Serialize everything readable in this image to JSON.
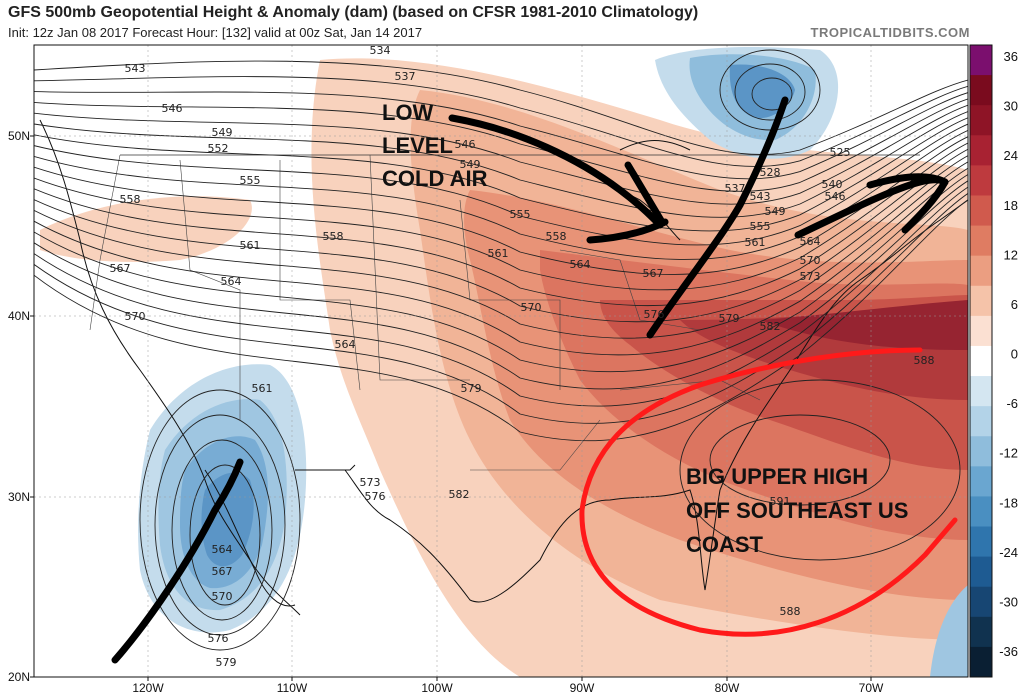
{
  "header": {
    "title": "GFS 500mb Geopotential Height & Anomaly (dam) (based on CFSR 1981-2010 Climatology)",
    "subtitle": "Init: 12z Jan 08 2017   Forecast Hour: [132]   valid at 00z Sat, Jan 14 2017",
    "brand": "TROPICALTIDBITS.COM"
  },
  "axes": {
    "lat_labels": [
      "50N",
      "40N",
      "30N",
      "20N"
    ],
    "lon_labels": [
      "120W",
      "110W",
      "100W",
      "90W",
      "80W",
      "70W"
    ]
  },
  "colorbar": {
    "labels": [
      "36",
      "30",
      "24",
      "18",
      "12",
      "6",
      "0",
      "-6",
      "-12",
      "-18",
      "-24",
      "-30",
      "-36"
    ],
    "colors": [
      "#7b0f6e",
      "#7a0b1e",
      "#8e1426",
      "#a82232",
      "#be3a3e",
      "#d05a4d",
      "#df7c62",
      "#eb9e81",
      "#f5c3a9",
      "#fbe0d2",
      "#ffffff",
      "#d4e6f1",
      "#b3d3e8",
      "#8fbddc",
      "#6aa6d0",
      "#4a8fc1",
      "#2f75ad",
      "#1e5b92",
      "#174673",
      "#10324f",
      "#0a1f33"
    ]
  },
  "contours": {
    "labels": [
      "534",
      "537",
      "543",
      "546",
      "549",
      "552",
      "555",
      "558",
      "561",
      "564",
      "567",
      "570",
      "573",
      "576",
      "579",
      "582",
      "588",
      "591",
      "525",
      "540",
      "528"
    ]
  },
  "annotations": {
    "low_level_cold_air": [
      "LOW",
      "LEVEL",
      "COLD AIR"
    ],
    "upper_high": [
      "BIG UPPER HIGH",
      "OFF SOUTHEAST US",
      "COAST"
    ]
  }
}
